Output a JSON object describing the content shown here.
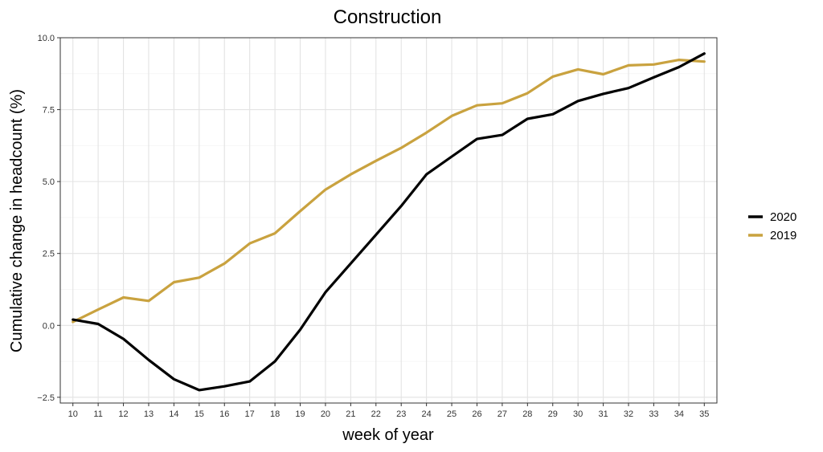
{
  "chart_data": {
    "type": "line",
    "title": "Construction",
    "xlabel": "week of year",
    "ylabel": "Cumulative change in headcount (%)",
    "x": [
      10,
      11,
      12,
      13,
      14,
      15,
      16,
      17,
      18,
      19,
      20,
      21,
      22,
      23,
      24,
      25,
      26,
      27,
      28,
      29,
      30,
      31,
      32,
      33,
      34,
      35
    ],
    "xlim": [
      9.5,
      35.5
    ],
    "ylim": [
      -2.7,
      10.0
    ],
    "yticks": [
      -2.5,
      0.0,
      2.5,
      5.0,
      7.5,
      10.0
    ],
    "ytick_labels": [
      "−2.5",
      "0.0",
      "2.5",
      "5.0",
      "7.5",
      "10.0"
    ],
    "grid": true,
    "legend_position": "right",
    "series": [
      {
        "name": "2020",
        "color": "#000000",
        "values": [
          0.2,
          0.05,
          -0.47,
          -1.2,
          -1.87,
          -2.25,
          -2.12,
          -1.95,
          -1.25,
          -0.15,
          1.15,
          2.15,
          3.15,
          4.15,
          5.25,
          5.87,
          6.48,
          6.62,
          7.18,
          7.34,
          7.8,
          8.05,
          8.25,
          8.62,
          8.98,
          9.45
        ]
      },
      {
        "name": "2019",
        "color": "#c9a23f",
        "values": [
          0.12,
          0.55,
          0.97,
          0.85,
          1.5,
          1.66,
          2.15,
          2.85,
          3.2,
          3.97,
          4.72,
          5.25,
          5.72,
          6.17,
          6.7,
          7.28,
          7.65,
          7.72,
          8.07,
          8.65,
          8.9,
          8.73,
          9.04,
          9.07,
          9.23,
          9.17
        ]
      }
    ]
  }
}
